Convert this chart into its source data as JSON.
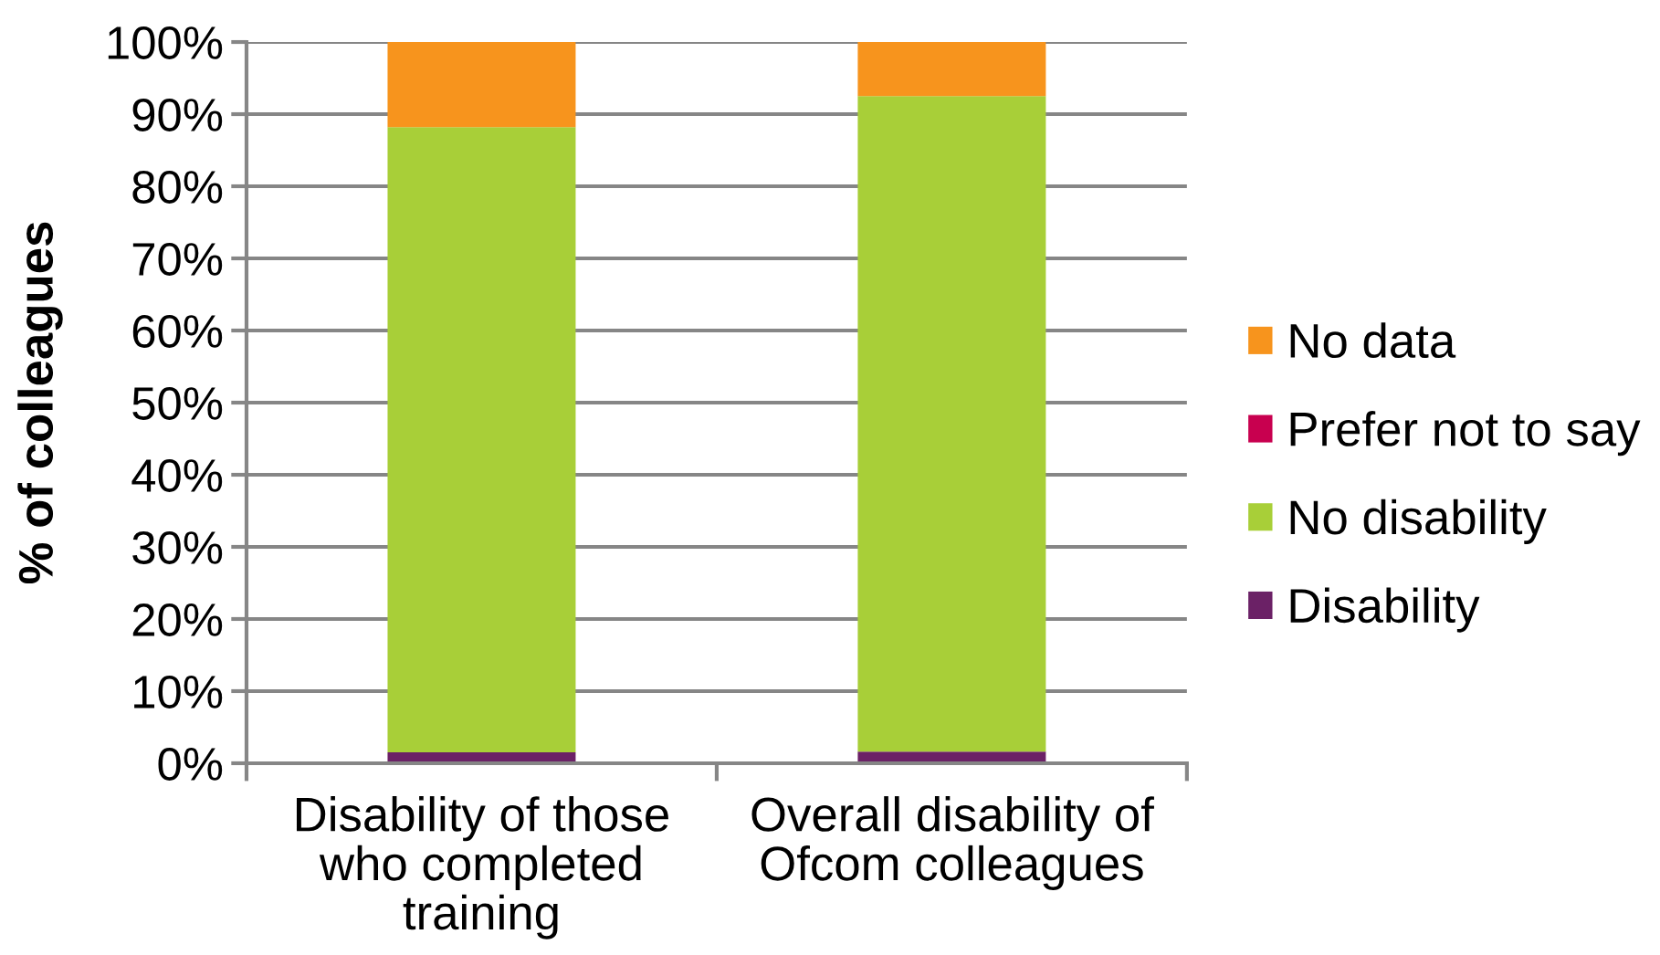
{
  "chart_data": {
    "type": "bar",
    "stacked": true,
    "ylabel": "% of colleagues",
    "categories": [
      "Disability of those who completed training",
      "Overall disability of Ofcom colleagues"
    ],
    "series": [
      {
        "name": "Disability",
        "color": "#6b2166",
        "values": [
          1.5,
          1.6
        ]
      },
      {
        "name": "No disability",
        "color": "#a8cf38",
        "values": [
          86.7,
          90.9
        ]
      },
      {
        "name": "Prefer not to say",
        "color": "#c8004f",
        "values": [
          0,
          0
        ]
      },
      {
        "name": "No data",
        "color": "#f7941d",
        "values": [
          11.8,
          7.5
        ]
      }
    ],
    "ylim": [
      0,
      100
    ],
    "yticks": [
      {
        "value": 0,
        "label": "0%"
      },
      {
        "value": 10,
        "label": "10%"
      },
      {
        "value": 20,
        "label": "20%"
      },
      {
        "value": 30,
        "label": "30%"
      },
      {
        "value": 40,
        "label": "40%"
      },
      {
        "value": 50,
        "label": "50%"
      },
      {
        "value": 60,
        "label": "60%"
      },
      {
        "value": 70,
        "label": "70%"
      },
      {
        "value": 80,
        "label": "80%"
      },
      {
        "value": 90,
        "label": "90%"
      },
      {
        "value": 100,
        "label": "100%"
      }
    ],
    "grid": "y",
    "legend": "right"
  }
}
